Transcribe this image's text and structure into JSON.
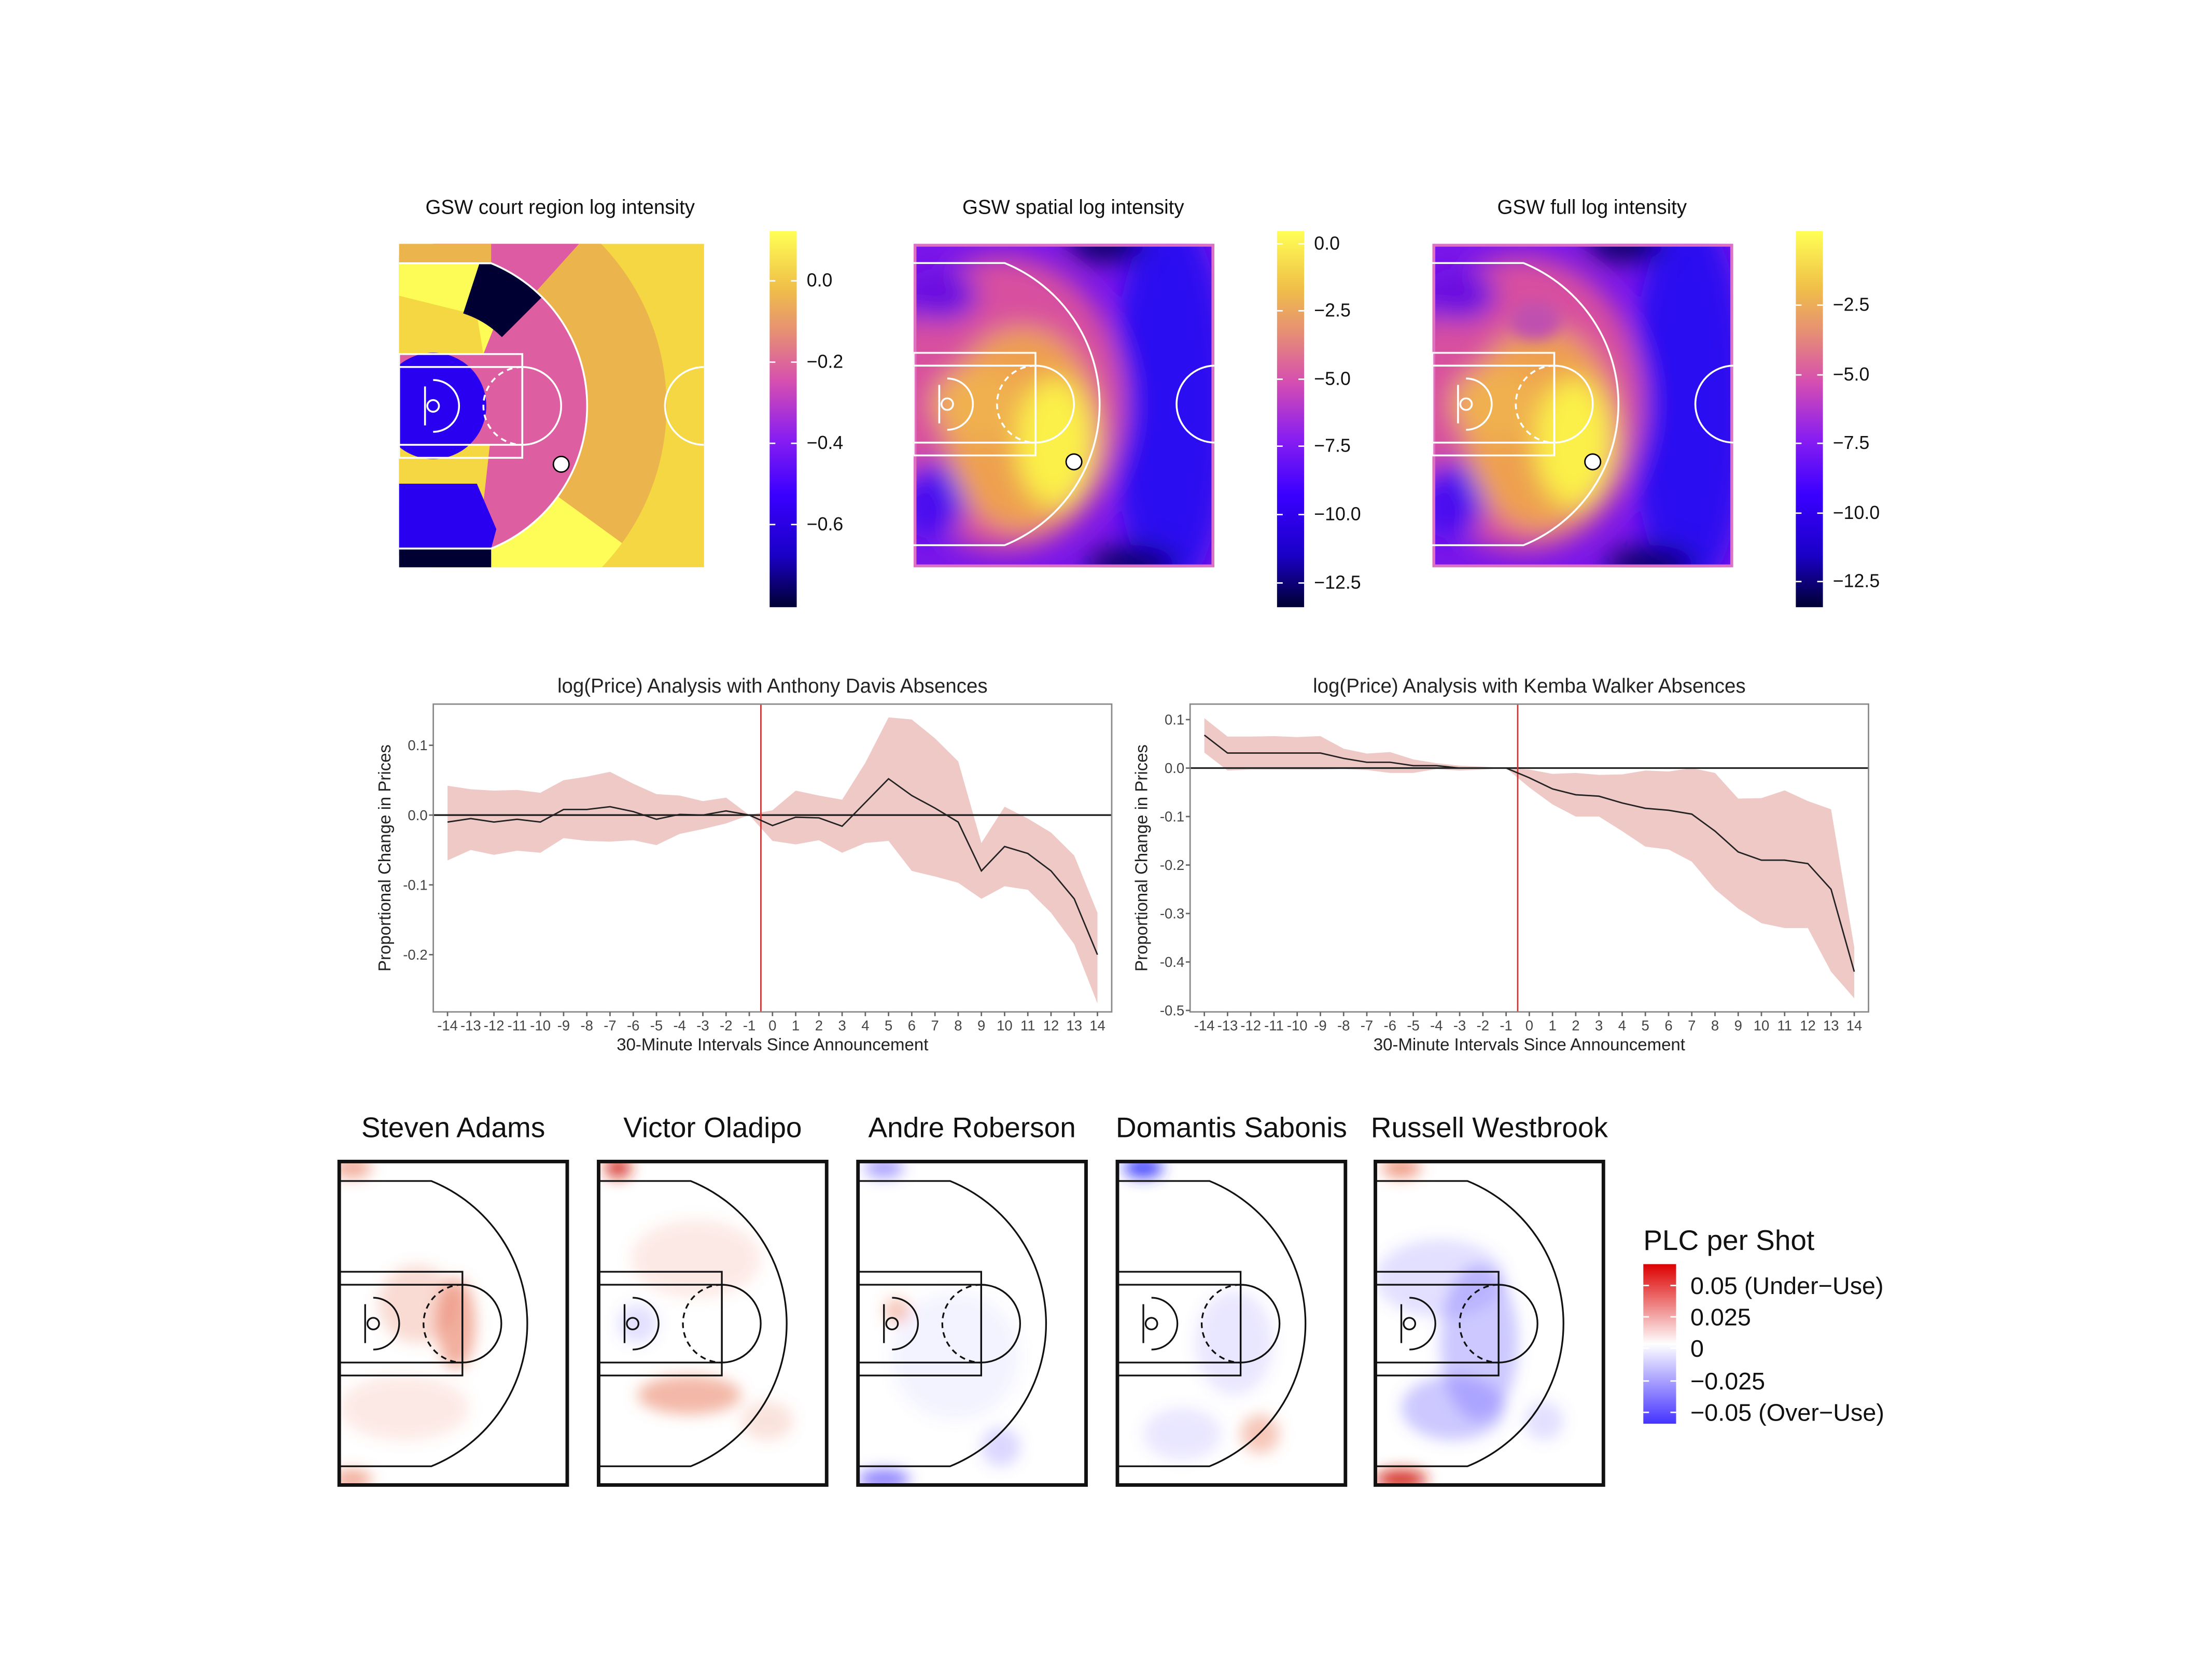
{
  "top_panels": [
    {
      "title": "GSW court region log intensity",
      "colorbar_ticks": [
        "0.0",
        "−0.2",
        "−0.4",
        "−0.6"
      ]
    },
    {
      "title": "GSW spatial log intensity",
      "colorbar_ticks": [
        "0.0",
        "−2.5",
        "−5.0",
        "−7.5",
        "−10.0",
        "−12.5"
      ]
    },
    {
      "title": "GSW full log intensity",
      "colorbar_ticks": [
        "−2.5",
        "−5.0",
        "−7.5",
        "−10.0",
        "−12.5"
      ]
    }
  ],
  "colorbar_colors": [
    "#000033",
    "#1a00c8",
    "#3a00ff",
    "#8a1ef0",
    "#d64fb0",
    "#e58a78",
    "#f0c048",
    "#ffff55"
  ],
  "chart_data": [
    {
      "type": "line",
      "title": "log(Price) Analysis with Anthony Davis Absences",
      "xlabel": "30-Minute Intervals Since Announcement",
      "ylabel": "Proportional Change in Prices",
      "x": [
        -14,
        -13,
        -12,
        -11,
        -10,
        -9,
        -8,
        -7,
        -6,
        -5,
        -4,
        -3,
        -2,
        -1,
        0,
        1,
        2,
        3,
        4,
        5,
        6,
        7,
        8,
        9,
        10,
        11,
        12,
        13,
        14
      ],
      "x_tick_labels": [
        "-14",
        "-13",
        "-12",
        "-11",
        "-10",
        "-9",
        "-8",
        "-7",
        "-6",
        "-5",
        "-4",
        "-3",
        "-2",
        "-1",
        "0",
        "1",
        "2",
        "3",
        "4",
        "5",
        "6",
        "7",
        "8",
        "9",
        "10",
        "11",
        "12",
        "13",
        "14"
      ],
      "y_ticks": [
        0.1,
        0.0,
        -0.1,
        -0.2
      ],
      "y_tick_labels": [
        "0.1",
        "0.0",
        "-0.1",
        "-0.2"
      ],
      "ylim": [
        -0.282,
        0.159
      ],
      "reference_lines": {
        "horizontal": 0.0,
        "vertical": -0.5
      },
      "series": [
        {
          "role": "estimate",
          "color": "#222222",
          "values": [
            -0.01,
            -0.005,
            -0.01,
            -0.006,
            -0.01,
            0.008,
            0.008,
            0.012,
            0.005,
            -0.006,
            0.001,
            0.0,
            0.006,
            0.0,
            -0.015,
            -0.003,
            -0.004,
            -0.016,
            0.018,
            0.052,
            0.028,
            0.01,
            -0.01,
            -0.08,
            -0.045,
            -0.055,
            -0.08,
            -0.12,
            -0.2
          ]
        },
        {
          "role": "upper",
          "values": [
            0.042,
            0.037,
            0.035,
            0.036,
            0.032,
            0.05,
            0.055,
            0.062,
            0.045,
            0.03,
            0.028,
            0.02,
            0.025,
            0.0,
            0.007,
            0.035,
            0.028,
            0.022,
            0.075,
            0.14,
            0.137,
            0.11,
            0.077,
            -0.04,
            0.012,
            -0.005,
            -0.025,
            -0.058,
            -0.14
          ]
        },
        {
          "role": "lower",
          "values": [
            -0.065,
            -0.05,
            -0.057,
            -0.051,
            -0.054,
            -0.033,
            -0.037,
            -0.038,
            -0.036,
            -0.043,
            -0.027,
            -0.02,
            -0.012,
            0.0,
            -0.037,
            -0.042,
            -0.036,
            -0.054,
            -0.04,
            -0.037,
            -0.08,
            -0.088,
            -0.097,
            -0.12,
            -0.102,
            -0.107,
            -0.14,
            -0.185,
            -0.27
          ]
        }
      ],
      "band_color": "#efc9c6",
      "vline_color": "#cc3333"
    },
    {
      "type": "line",
      "title": "log(Price) Analysis with Kemba Walker Absences",
      "xlabel": "30-Minute Intervals Since Announcement",
      "ylabel": "Proportional Change in Prices",
      "x": [
        -14,
        -13,
        -12,
        -11,
        -10,
        -9,
        -8,
        -7,
        -6,
        -5,
        -4,
        -3,
        -2,
        -1,
        0,
        1,
        2,
        3,
        4,
        5,
        6,
        7,
        8,
        9,
        10,
        11,
        12,
        13,
        14
      ],
      "x_tick_labels": [
        "-14",
        "-13",
        "-12",
        "-11",
        "-10",
        "-9",
        "-8",
        "-7",
        "-6",
        "-5",
        "-4",
        "-3",
        "-2",
        "-1",
        "0",
        "1",
        "2",
        "3",
        "4",
        "5",
        "6",
        "7",
        "8",
        "9",
        "10",
        "11",
        "12",
        "13",
        "14"
      ],
      "y_ticks": [
        0.1,
        0.0,
        -0.1,
        -0.2,
        -0.3,
        -0.4,
        -0.5
      ],
      "y_tick_labels": [
        "0.1",
        "0.0",
        "-0.1",
        "-0.2",
        "-0.3",
        "-0.4",
        "-0.5"
      ],
      "ylim": [
        -0.503,
        0.132
      ],
      "reference_lines": {
        "horizontal": 0.0,
        "vertical": -0.5
      },
      "series": [
        {
          "role": "estimate",
          "color": "#222222",
          "values": [
            0.068,
            0.031,
            0.031,
            0.031,
            0.031,
            0.031,
            0.02,
            0.012,
            0.012,
            0.005,
            0.005,
            0.0,
            0.0,
            0.0,
            -0.02,
            -0.043,
            -0.055,
            -0.058,
            -0.072,
            -0.083,
            -0.087,
            -0.095,
            -0.13,
            -0.173,
            -0.19,
            -0.19,
            -0.197,
            -0.25,
            -0.42
          ]
        },
        {
          "role": "upper",
          "values": [
            0.103,
            0.065,
            0.065,
            0.066,
            0.064,
            0.066,
            0.04,
            0.03,
            0.033,
            0.018,
            0.01,
            0.005,
            0.003,
            0.0,
            -0.003,
            -0.012,
            -0.01,
            -0.014,
            -0.013,
            -0.005,
            -0.007,
            0.0,
            -0.01,
            -0.063,
            -0.062,
            -0.046,
            -0.068,
            -0.085,
            -0.37
          ]
        },
        {
          "role": "lower",
          "values": [
            0.032,
            -0.005,
            -0.003,
            -0.003,
            -0.003,
            -0.003,
            -0.002,
            -0.004,
            -0.01,
            -0.01,
            -0.002,
            -0.005,
            -0.003,
            0.0,
            -0.04,
            -0.075,
            -0.1,
            -0.1,
            -0.13,
            -0.162,
            -0.168,
            -0.193,
            -0.25,
            -0.29,
            -0.32,
            -0.33,
            -0.33,
            -0.42,
            -0.475
          ]
        }
      ],
      "band_color": "#efc9c6",
      "vline_color": "#cc3333"
    }
  ],
  "players": [
    "Steven Adams",
    "Victor Oladipo",
    "Andre Roberson",
    "Domantis Sabonis",
    "Russell Westbrook"
  ],
  "legend": {
    "title": "PLC per Shot",
    "labels": [
      "0.05 (Under−Use)",
      "0.025",
      "0",
      "−0.025",
      "−0.05 (Over−Use)"
    ],
    "colors": {
      "high": "#dd0000",
      "mid": "#ffffff",
      "low": "#4433ff"
    }
  }
}
